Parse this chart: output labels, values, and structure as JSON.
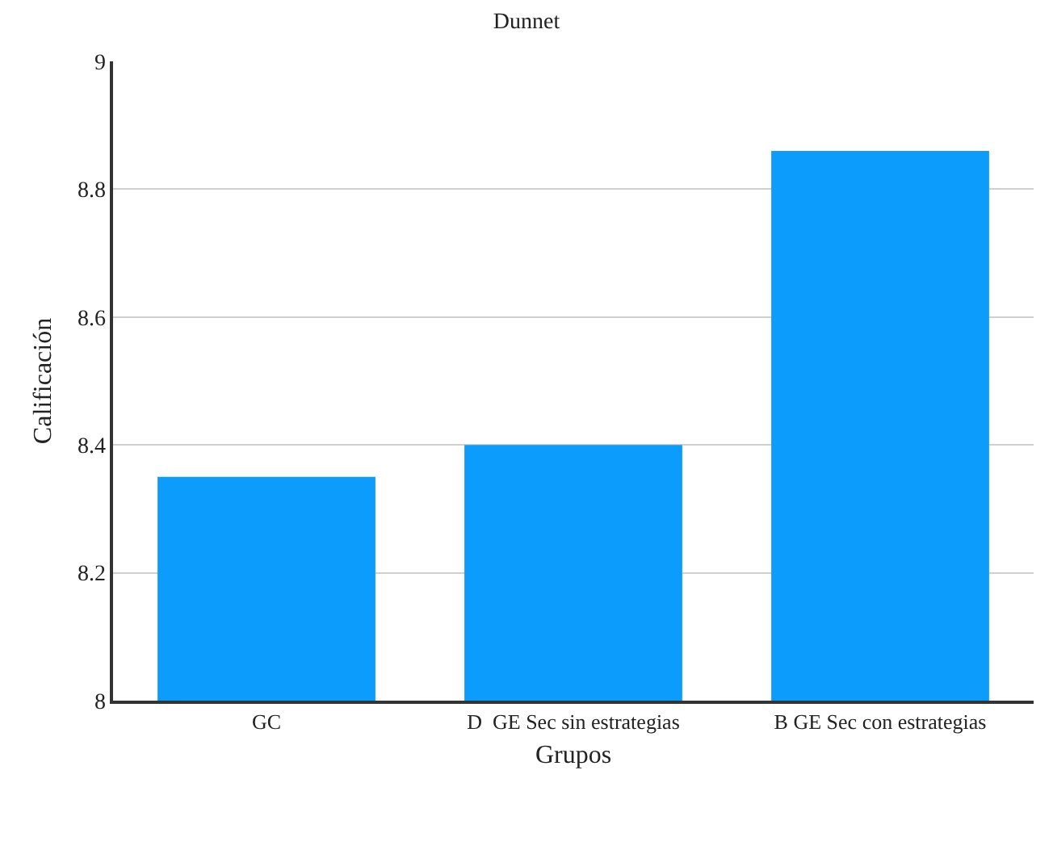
{
  "chart_data": {
    "type": "bar",
    "title": "Dunnet",
    "xlabel": "Grupos",
    "ylabel": "Calificación",
    "categories": [
      "GC",
      "D  GE Sec sin estrategias",
      "B GE Sec con estrategias"
    ],
    "values": [
      8.35,
      8.4,
      8.86
    ],
    "color": "#0c9dfc",
    "ylim": [
      8,
      9
    ],
    "yticks": [
      8,
      8.2,
      8.4,
      8.6,
      8.8,
      9
    ],
    "grid": "y"
  }
}
